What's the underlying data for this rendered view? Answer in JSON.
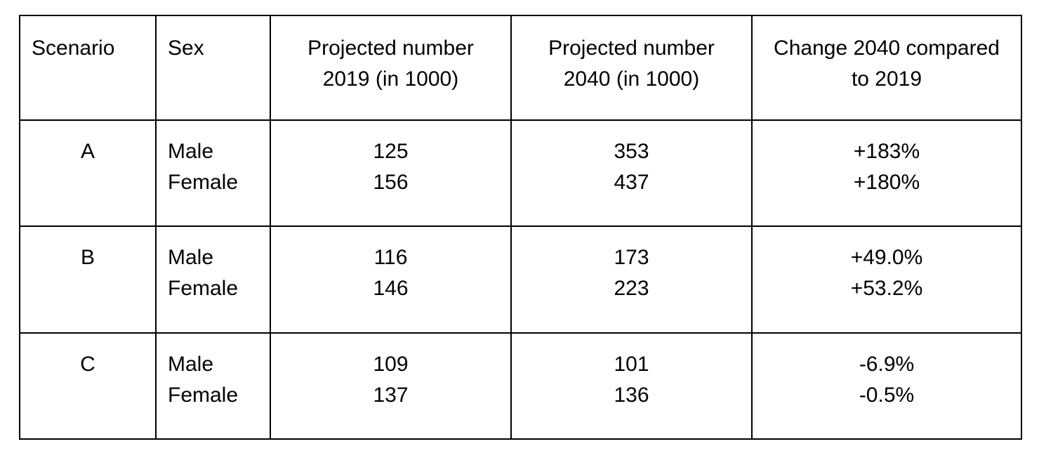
{
  "table": {
    "headers": {
      "scenario": "Scenario",
      "sex": "Sex",
      "projected_2019": [
        "Projected number",
        "2019 (in 1000)"
      ],
      "projected_2040": [
        "Projected number",
        "2040 (in 1000)"
      ],
      "change": [
        "Change 2040 compared",
        "to 2019"
      ]
    },
    "rows": [
      {
        "scenario": "A",
        "sex": [
          "Male",
          "Female"
        ],
        "projected_2019": [
          "125",
          "156"
        ],
        "projected_2040": [
          "353",
          "437"
        ],
        "change": [
          "+183%",
          "+180%"
        ]
      },
      {
        "scenario": "B",
        "sex": [
          "Male",
          "Female"
        ],
        "projected_2019": [
          "116",
          "146"
        ],
        "projected_2040": [
          "173",
          "223"
        ],
        "change": [
          "+49.0%",
          "+53.2%"
        ]
      },
      {
        "scenario": "C",
        "sex": [
          "Male",
          "Female"
        ],
        "projected_2019": [
          "109",
          "137"
        ],
        "projected_2040": [
          "101",
          "136"
        ],
        "change": [
          "-6.9%",
          "-0.5%"
        ]
      }
    ]
  }
}
